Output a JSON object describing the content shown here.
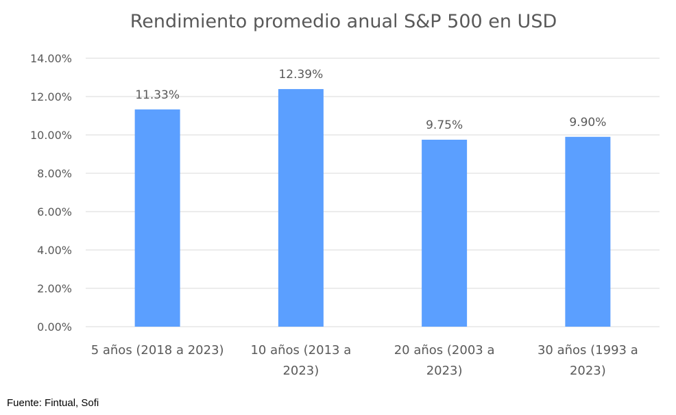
{
  "chart_data": {
    "type": "bar",
    "title": "Rendimiento promedio anual S&P 500 en USD",
    "categories": [
      [
        "5 años (2018 a 2023)"
      ],
      [
        "10 años (2013 a",
        "2023)"
      ],
      [
        "20 años (2003 a",
        "2023)"
      ],
      [
        "30 años (1993 a",
        "2023)"
      ]
    ],
    "values": [
      11.33,
      12.39,
      9.75,
      9.9
    ],
    "value_labels": [
      "11.33%",
      "12.39%",
      "9.75%",
      "9.90%"
    ],
    "yticks": [
      0,
      2,
      4,
      6,
      8,
      10,
      12,
      14
    ],
    "ytick_labels": [
      "0.00%",
      "2.00%",
      "4.00%",
      "6.00%",
      "8.00%",
      "10.00%",
      "12.00%",
      "14.00%"
    ],
    "ylim": [
      0,
      14
    ],
    "xlabel": "",
    "ylabel": "",
    "grid": true,
    "colors": {
      "bar": "#5B9FFF",
      "grid": "#D9D9D9",
      "text": "#595959",
      "title": "#595959"
    }
  },
  "footer": {
    "source": "Fuente: Fintual, Sofi"
  }
}
